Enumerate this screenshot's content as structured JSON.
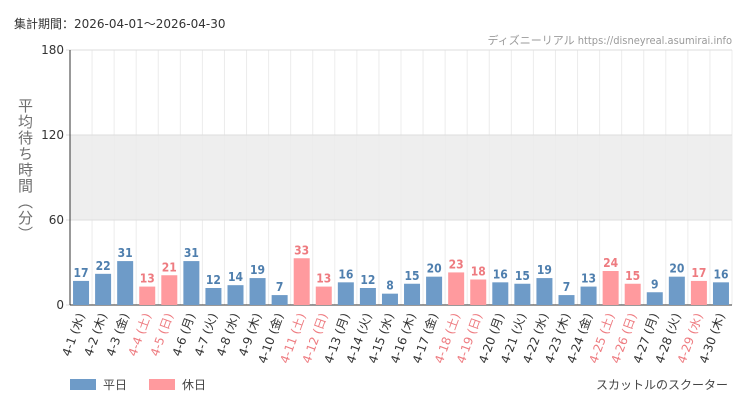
{
  "header": {
    "period": "集計期間：2026-04-01〜2026-04-30",
    "source": "ディズニーリアル https://disneyreal.asumirai.info"
  },
  "footer": {
    "attraction": "スカットルのスクーター"
  },
  "colors": {
    "weekday": "#6e9bc8",
    "holiday": "#ff9a9e",
    "weekday_label": "#4f7fae",
    "holiday_label": "#ee7b80",
    "band": "#eeeeee"
  },
  "chart_data": {
    "type": "bar",
    "ylabel": "平均待ち時間（分）",
    "ylim": [
      0,
      180
    ],
    "yticks": [
      0,
      60,
      120,
      180
    ],
    "grid": true,
    "legend_position": "bottom-left",
    "legend": [
      {
        "key": "weekday",
        "label": "平日"
      },
      {
        "key": "holiday",
        "label": "休日"
      }
    ],
    "categories": [
      "4-1 (水)",
      "4-2 (木)",
      "4-3 (金)",
      "4-4 (土)",
      "4-5 (日)",
      "4-6 (月)",
      "4-7 (火)",
      "4-8 (水)",
      "4-9 (木)",
      "4-10 (金)",
      "4-11 (土)",
      "4-12 (日)",
      "4-13 (月)",
      "4-14 (火)",
      "4-15 (水)",
      "4-16 (木)",
      "4-17 (金)",
      "4-18 (土)",
      "4-19 (日)",
      "4-20 (月)",
      "4-21 (火)",
      "4-22 (水)",
      "4-23 (木)",
      "4-24 (金)",
      "4-25 (土)",
      "4-26 (日)",
      "4-27 (月)",
      "4-28 (火)",
      "4-29 (水)",
      "4-30 (木)"
    ],
    "values": [
      17,
      22,
      31,
      13,
      21,
      31,
      12,
      14,
      19,
      7,
      33,
      13,
      16,
      12,
      8,
      15,
      20,
      23,
      18,
      16,
      15,
      19,
      7,
      13,
      24,
      15,
      9,
      20,
      17,
      16
    ],
    "day_type": [
      "weekday",
      "weekday",
      "weekday",
      "holiday",
      "holiday",
      "weekday",
      "weekday",
      "weekday",
      "weekday",
      "weekday",
      "holiday",
      "holiday",
      "weekday",
      "weekday",
      "weekday",
      "weekday",
      "weekday",
      "holiday",
      "holiday",
      "weekday",
      "weekday",
      "weekday",
      "weekday",
      "weekday",
      "holiday",
      "holiday",
      "weekday",
      "weekday",
      "holiday",
      "weekday"
    ]
  }
}
